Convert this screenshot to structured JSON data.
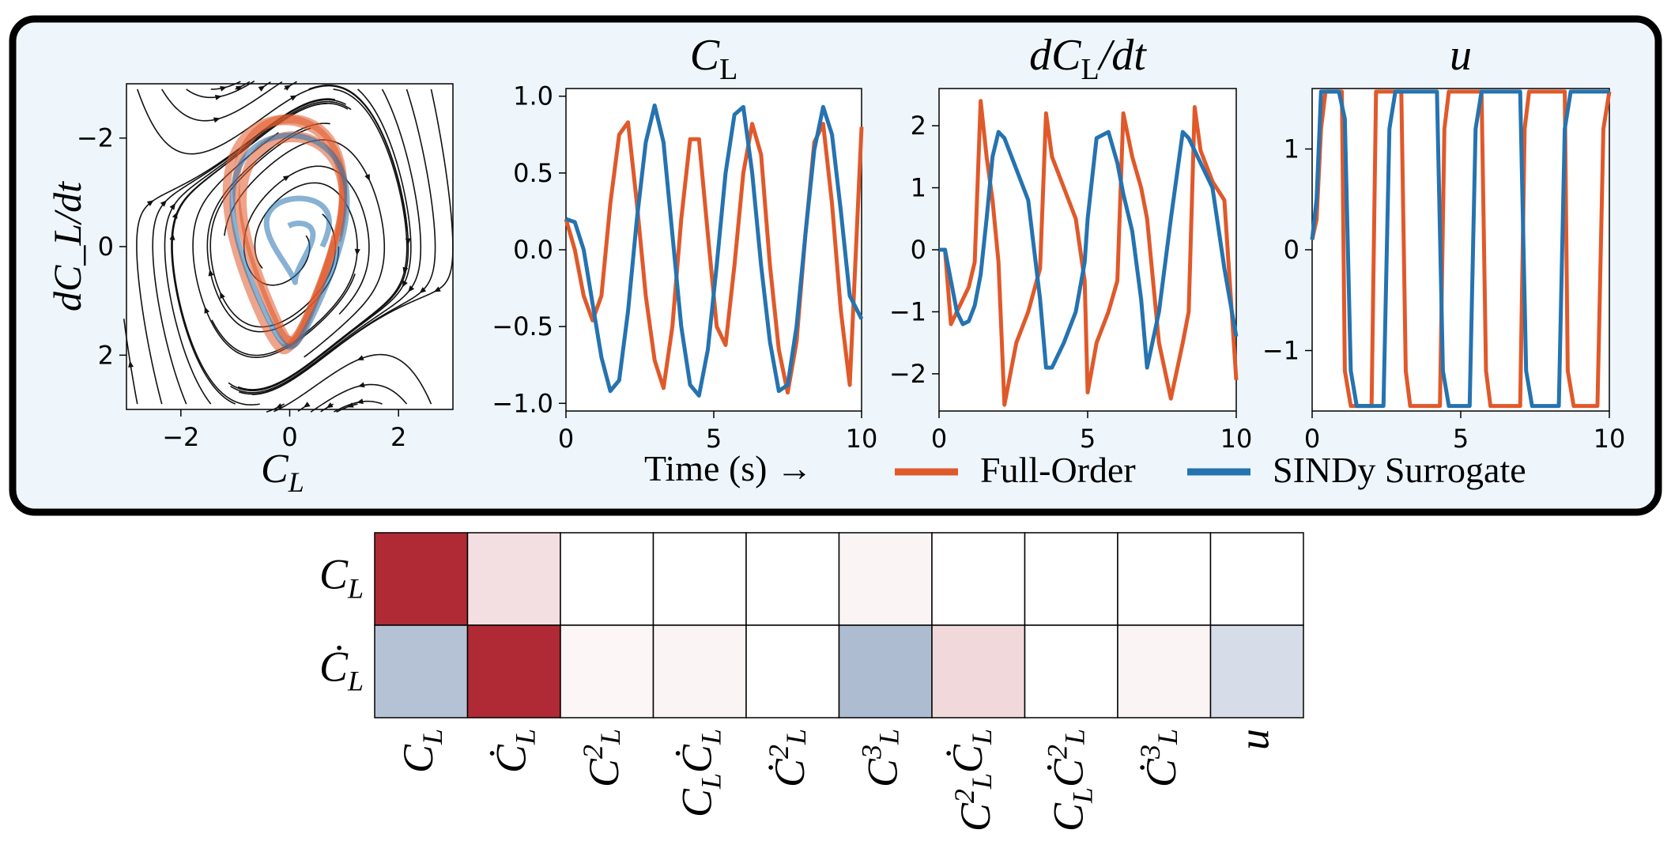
{
  "colors": {
    "panel_bg": "#eef6fc",
    "panel_border": "#000000",
    "full_order": "#e0592a",
    "sindy": "#2573b0",
    "stream": "#111111",
    "positive": "#b02a35",
    "negative": "#a9b8cf"
  },
  "phase_plot": {
    "xlabel_main": "C",
    "xlabel_sub": "L",
    "ylabel": "dC_L/dt",
    "xlim": [
      -3,
      3
    ],
    "ylim": [
      -3,
      3
    ],
    "xticks": [
      "−2",
      "0",
      "2"
    ],
    "yticks": [
      "−2",
      "0",
      "2"
    ]
  },
  "time_axis_label": "Time (s) →",
  "legend": [
    {
      "label": "Full-Order",
      "color": "#e0592a"
    },
    {
      "label": "SINDy Surrogate",
      "color": "#2573b0"
    }
  ],
  "chart_data": [
    {
      "type": "line",
      "title": "C_L",
      "xlim": [
        0,
        10
      ],
      "ylim": [
        -1.05,
        1.05
      ],
      "xticks": [
        "0",
        "5",
        "10"
      ],
      "yticks": [
        "1.0",
        "0.5",
        "0.0",
        "−0.5",
        "−1.0"
      ],
      "series": [
        {
          "name": "Full-Order",
          "x": [
            0,
            0.3,
            0.6,
            0.9,
            1.2,
            1.5,
            1.8,
            2.1,
            2.4,
            2.7,
            3.0,
            3.3,
            3.6,
            3.9,
            4.2,
            4.5,
            4.8,
            5.1,
            5.4,
            5.7,
            6.0,
            6.3,
            6.6,
            6.9,
            7.2,
            7.5,
            7.8,
            8.1,
            8.4,
            8.7,
            9.0,
            9.3,
            9.6,
            10.0
          ],
          "y": [
            0.2,
            0.0,
            -0.3,
            -0.46,
            -0.3,
            0.3,
            0.75,
            0.83,
            0.3,
            -0.3,
            -0.72,
            -0.9,
            -0.5,
            0.2,
            0.72,
            0.72,
            0.1,
            -0.5,
            -0.62,
            -0.1,
            0.5,
            0.82,
            0.62,
            -0.1,
            -0.65,
            -0.93,
            -0.6,
            0.1,
            0.7,
            0.82,
            0.3,
            -0.4,
            -0.88,
            0.8
          ]
        },
        {
          "name": "SINDy Surrogate",
          "x": [
            0,
            0.3,
            0.6,
            0.9,
            1.2,
            1.5,
            1.8,
            2.1,
            2.4,
            2.7,
            3.0,
            3.3,
            3.6,
            3.9,
            4.2,
            4.5,
            4.8,
            5.1,
            5.4,
            5.7,
            6.0,
            6.3,
            6.6,
            6.9,
            7.2,
            7.5,
            7.8,
            8.1,
            8.4,
            8.7,
            9.0,
            9.3,
            9.6,
            10.0
          ],
          "y": [
            0.2,
            0.18,
            0.0,
            -0.35,
            -0.7,
            -0.92,
            -0.85,
            -0.4,
            0.2,
            0.7,
            0.94,
            0.7,
            0.1,
            -0.5,
            -0.88,
            -0.95,
            -0.65,
            -0.1,
            0.5,
            0.88,
            0.93,
            0.5,
            -0.1,
            -0.6,
            -0.92,
            -0.88,
            -0.5,
            0.1,
            0.65,
            0.93,
            0.75,
            0.25,
            -0.3,
            -0.45
          ]
        }
      ]
    },
    {
      "type": "line",
      "title": "dC_L/dt",
      "xlim": [
        0,
        10
      ],
      "ylim": [
        -2.6,
        2.6
      ],
      "xticks": [
        "0",
        "5",
        "10"
      ],
      "yticks": [
        "2",
        "1",
        "0",
        "−1",
        "−2"
      ],
      "series": [
        {
          "name": "Full-Order",
          "x": [
            0,
            0.2,
            0.4,
            0.6,
            0.8,
            1.0,
            1.2,
            1.4,
            1.6,
            1.8,
            2.0,
            2.2,
            2.6,
            3.0,
            3.4,
            3.6,
            3.8,
            4.2,
            4.6,
            4.9,
            5.0,
            5.3,
            5.7,
            6.0,
            6.2,
            6.5,
            6.8,
            7.0,
            7.4,
            7.8,
            8.2,
            8.4,
            8.6,
            8.8,
            9.2,
            9.6,
            10.0
          ],
          "y": [
            0,
            0,
            -1.2,
            -1.0,
            -0.8,
            -0.6,
            -0.2,
            2.4,
            1.5,
            0.8,
            -0.2,
            -2.5,
            -1.5,
            -1.0,
            -0.3,
            2.2,
            1.5,
            1.0,
            0.5,
            -0.5,
            -2.3,
            -1.5,
            -1.0,
            -0.5,
            2.2,
            1.5,
            1.0,
            0.5,
            -1.5,
            -2.4,
            -1.5,
            -1.0,
            2.3,
            1.6,
            1.1,
            0.8,
            -2.1
          ]
        },
        {
          "name": "SINDy Surrogate",
          "x": [
            0,
            0.2,
            0.4,
            0.6,
            0.8,
            1.0,
            1.2,
            1.4,
            1.6,
            1.8,
            2.0,
            2.2,
            2.6,
            3.0,
            3.4,
            3.6,
            3.8,
            4.2,
            4.6,
            4.9,
            5.0,
            5.3,
            5.7,
            6.0,
            6.2,
            6.5,
            6.8,
            7.0,
            7.4,
            7.8,
            8.2,
            8.4,
            8.6,
            8.8,
            9.2,
            9.6,
            10.0
          ],
          "y": [
            0,
            0,
            -0.5,
            -1.0,
            -1.2,
            -1.15,
            -0.9,
            -0.4,
            0.5,
            1.5,
            1.9,
            1.8,
            1.3,
            0.8,
            -0.8,
            -1.9,
            -1.9,
            -1.5,
            -1.0,
            -0.2,
            0.5,
            1.8,
            1.9,
            1.4,
            0.9,
            0.3,
            -0.8,
            -1.9,
            -1.0,
            0.5,
            1.9,
            1.8,
            1.6,
            1.4,
            1.0,
            -0.3,
            -1.4
          ]
        }
      ]
    },
    {
      "type": "line",
      "title": "u",
      "xlim": [
        0,
        10
      ],
      "ylim": [
        -1.6,
        1.6
      ],
      "xticks": [
        "0",
        "5",
        "10"
      ],
      "yticks": [
        "1",
        "0",
        "−1"
      ],
      "series": [
        {
          "name": "Full-Order",
          "x": [
            0,
            0.15,
            0.3,
            0.45,
            1.0,
            1.1,
            1.3,
            2.0,
            2.15,
            3.0,
            3.15,
            3.3,
            4.3,
            4.45,
            4.6,
            5.7,
            5.85,
            6.0,
            7.0,
            7.15,
            7.3,
            8.5,
            8.6,
            8.8,
            9.6,
            9.8,
            10.0
          ],
          "y": [
            0.1,
            0.3,
            1.2,
            1.57,
            1.57,
            -1.2,
            -1.55,
            -1.55,
            1.57,
            1.57,
            -1.2,
            -1.55,
            -1.55,
            1.2,
            1.57,
            1.57,
            -1.2,
            -1.55,
            -1.55,
            1.2,
            1.57,
            1.57,
            -1.2,
            -1.55,
            -1.55,
            1.2,
            1.57
          ]
        },
        {
          "name": "SINDy Surrogate",
          "x": [
            0,
            0.15,
            0.3,
            0.45,
            0.7,
            0.9,
            1.1,
            1.3,
            1.5,
            2.4,
            2.6,
            2.8,
            4.2,
            4.4,
            4.6,
            5.3,
            5.5,
            5.7,
            7.0,
            7.2,
            7.4,
            8.3,
            8.5,
            8.7,
            10.0
          ],
          "y": [
            0.1,
            0.5,
            1.57,
            1.57,
            1.57,
            1.57,
            1.3,
            -1.2,
            -1.55,
            -1.55,
            1.2,
            1.57,
            1.57,
            -1.2,
            -1.55,
            -1.55,
            1.2,
            1.57,
            1.57,
            -1.2,
            -1.55,
            -1.55,
            1.2,
            1.57,
            1.57
          ]
        }
      ]
    },
    {
      "type": "heatmap",
      "rows": [
        "C_L",
        "Ċ_L"
      ],
      "columns": [
        "C_L",
        "Ċ_L",
        "C_L^2",
        "C_L Ċ_L",
        "Ċ_L^2",
        "C_L^3",
        "C_L^2 Ċ_L",
        "C_L Ċ_L^2",
        "Ċ_L^3",
        "u"
      ],
      "values": [
        [
          1.0,
          0.15,
          0,
          0,
          0,
          0.05,
          0,
          0,
          0,
          0
        ],
        [
          -0.45,
          1.0,
          0.04,
          0.05,
          0,
          -0.5,
          0.18,
          0,
          0.05,
          -0.25
        ]
      ]
    }
  ]
}
